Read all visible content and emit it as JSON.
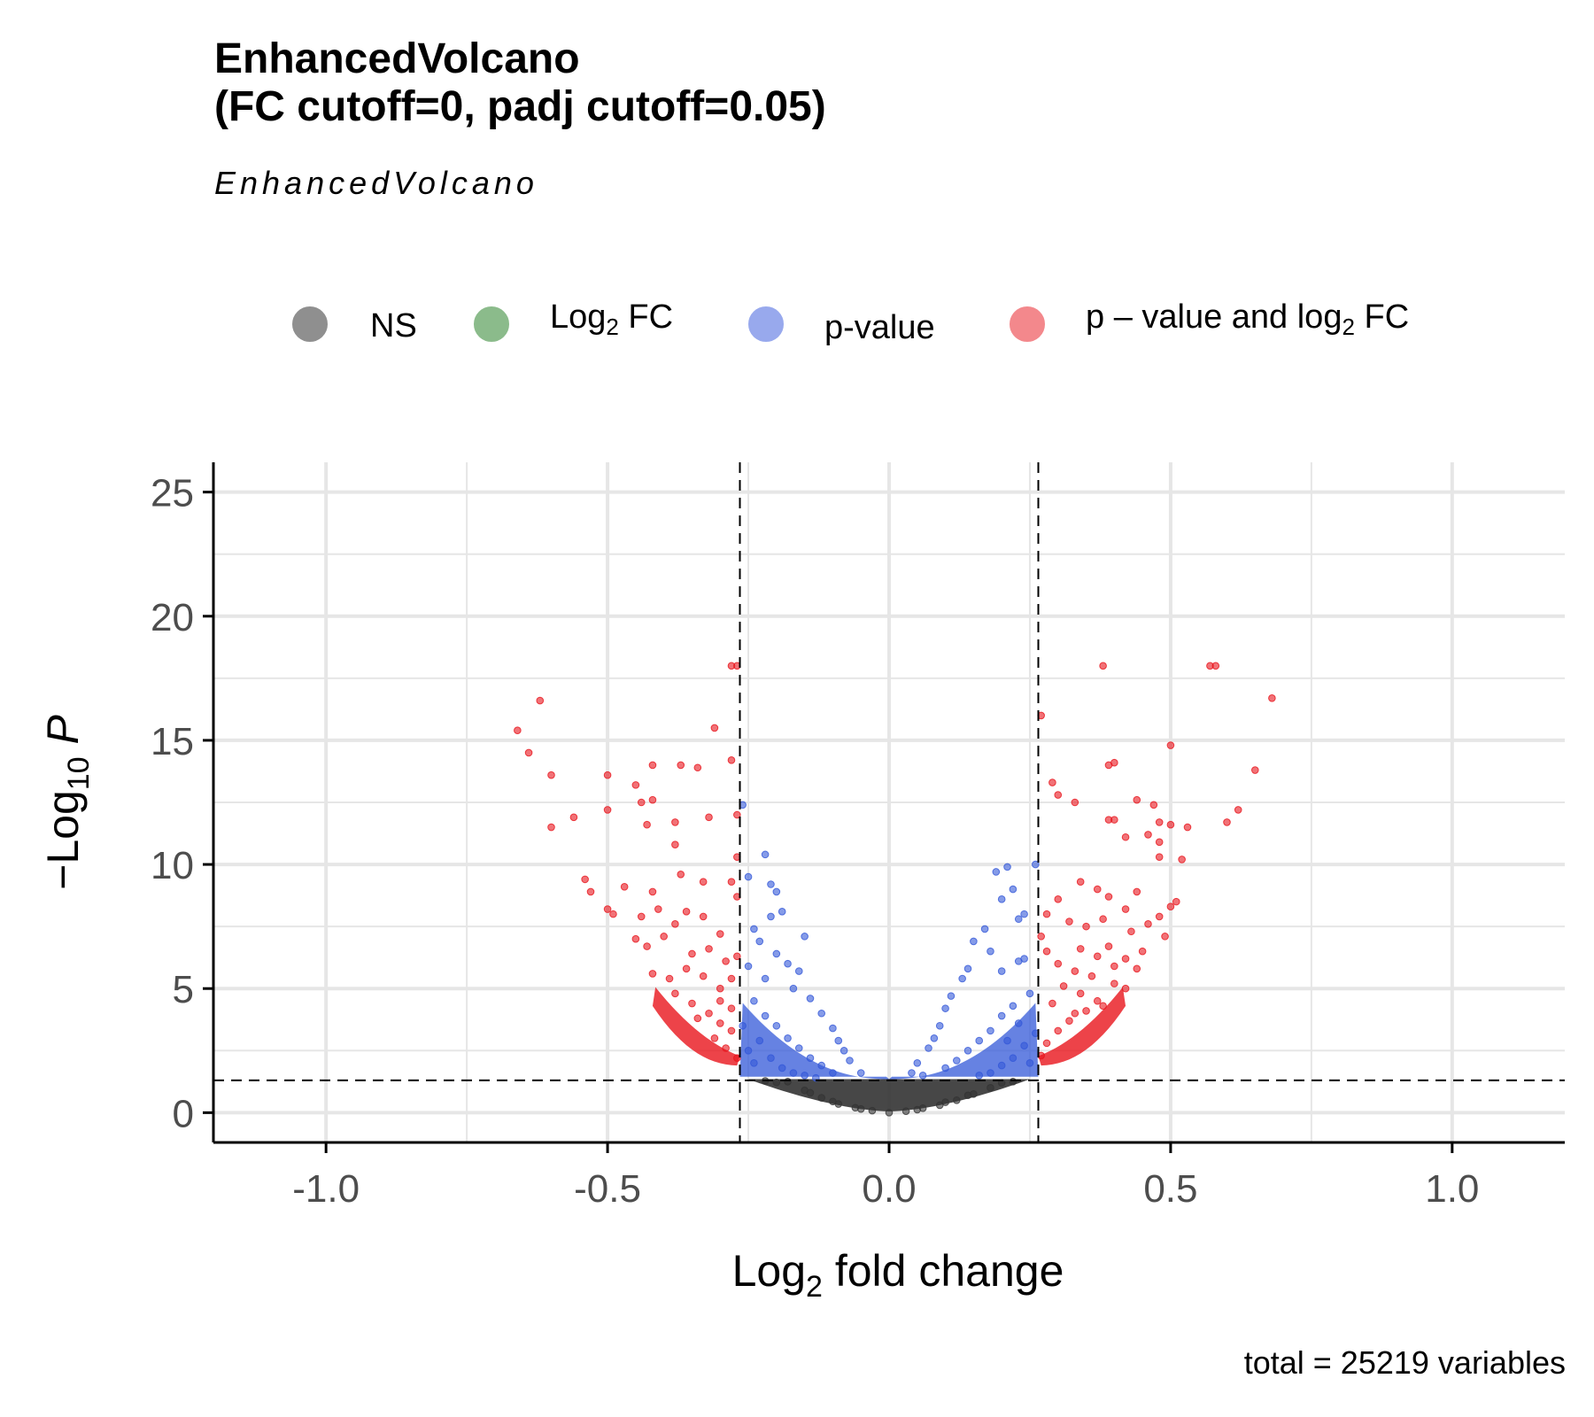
{
  "title_lines": [
    "EnhancedVolcano",
    "(FC cutoff=0, padj cutoff=0.05)"
  ],
  "subtitle": "EnhancedVolcano",
  "caption": "total = 25219 variables",
  "legend": [
    {
      "label": "NS",
      "sub": "",
      "suffix": "",
      "color": "#222222"
    },
    {
      "label": "Log",
      "sub": "2",
      "suffix": " FC",
      "color": "#1a7a1a"
    },
    {
      "label": "p-value",
      "sub": "",
      "suffix": "",
      "color": "#3355dd"
    },
    {
      "label": "p – value and log",
      "sub": "2",
      "suffix": " FC",
      "color": "#e8141c"
    }
  ],
  "colors": {
    "ns": "#333333",
    "log2fc": "#2e8b2e",
    "pvalue": "#3358d8",
    "both": "#e8141c",
    "grid": "#e6e6e6",
    "axis": "#000000"
  },
  "chart_data": {
    "type": "scatter",
    "title": "EnhancedVolcano (FC cutoff=0, padj cutoff=0.05)",
    "subtitle": "EnhancedVolcano",
    "xlabel": {
      "main": "Log",
      "sub": "2",
      "rest": " fold change"
    },
    "ylabel": {
      "main": "−Log",
      "sub": "10",
      "italic": "P"
    },
    "xlim": [
      -1.2,
      1.2
    ],
    "ylim": [
      -1.2,
      26.2
    ],
    "xticks": [
      -1.0,
      -0.5,
      0.0,
      0.5,
      1.0
    ],
    "xtick_labels": [
      "-1.0",
      "-0.5",
      "0.0",
      "0.5",
      "1.0"
    ],
    "yticks": [
      0,
      5,
      10,
      15,
      20,
      25
    ],
    "ytick_labels": [
      "0",
      "5",
      "10",
      "15",
      "20",
      "25"
    ],
    "cutoffs": {
      "log2fc": [
        -0.265,
        0.265
      ],
      "neg_log10_p": 1.3
    },
    "grid": true,
    "legend_position": "top",
    "total_points": 25219,
    "series": [
      {
        "name": "NS",
        "color": "#333333",
        "points": [
          [
            -0.18,
            1.25
          ],
          [
            -0.15,
            0.9
          ],
          [
            -0.12,
            0.6
          ],
          [
            -0.09,
            0.35
          ],
          [
            -0.06,
            0.2
          ],
          [
            -0.03,
            0.08
          ],
          [
            0.0,
            0.0
          ],
          [
            0.03,
            0.06
          ],
          [
            0.06,
            0.18
          ],
          [
            0.09,
            0.3
          ],
          [
            0.12,
            0.5
          ],
          [
            0.15,
            0.75
          ],
          [
            0.18,
            1.0
          ],
          [
            0.2,
            1.2
          ],
          [
            -0.2,
            1.22
          ],
          [
            -0.1,
            0.45
          ],
          [
            0.1,
            0.42
          ],
          [
            -0.05,
            0.15
          ],
          [
            0.05,
            0.12
          ],
          [
            -0.14,
            0.8
          ],
          [
            0.14,
            0.7
          ],
          [
            -0.22,
            1.28
          ],
          [
            0.22,
            1.25
          ]
        ]
      },
      {
        "name": "p-value",
        "color": "#3358d8",
        "points": [
          [
            -0.26,
            12.4
          ],
          [
            -0.22,
            10.4
          ],
          [
            -0.25,
            9.5
          ],
          [
            -0.21,
            9.2
          ],
          [
            -0.2,
            8.9
          ],
          [
            -0.19,
            8.1
          ],
          [
            -0.21,
            7.9
          ],
          [
            -0.15,
            7.1
          ],
          [
            -0.24,
            7.4
          ],
          [
            -0.23,
            6.9
          ],
          [
            -0.2,
            6.4
          ],
          [
            -0.18,
            6.0
          ],
          [
            -0.16,
            5.7
          ],
          [
            -0.22,
            5.4
          ],
          [
            -0.25,
            5.9
          ],
          [
            -0.17,
            5.0
          ],
          [
            -0.14,
            4.6
          ],
          [
            -0.12,
            4.0
          ],
          [
            -0.1,
            3.4
          ],
          [
            -0.09,
            2.9
          ],
          [
            -0.08,
            2.5
          ],
          [
            -0.07,
            2.1
          ],
          [
            -0.05,
            1.6
          ],
          [
            -0.24,
            4.5
          ],
          [
            -0.22,
            3.9
          ],
          [
            -0.2,
            3.5
          ],
          [
            -0.18,
            3.0
          ],
          [
            -0.16,
            2.6
          ],
          [
            -0.14,
            2.2
          ],
          [
            -0.12,
            1.9
          ],
          [
            -0.1,
            1.6
          ],
          [
            -0.25,
            2.5
          ],
          [
            -0.23,
            2.9
          ],
          [
            -0.21,
            2.2
          ],
          [
            -0.19,
            1.8
          ],
          [
            -0.17,
            1.6
          ],
          [
            -0.15,
            1.5
          ],
          [
            -0.13,
            1.4
          ],
          [
            -0.26,
            3.5
          ],
          [
            -0.24,
            2.0
          ],
          [
            0.19,
            9.7
          ],
          [
            0.21,
            9.9
          ],
          [
            0.26,
            10.0
          ],
          [
            0.22,
            9.0
          ],
          [
            0.2,
            8.6
          ],
          [
            0.23,
            7.8
          ],
          [
            0.24,
            8.0
          ],
          [
            0.17,
            7.4
          ],
          [
            0.15,
            6.9
          ],
          [
            0.18,
            6.5
          ],
          [
            0.23,
            6.1
          ],
          [
            0.14,
            5.8
          ],
          [
            0.13,
            5.4
          ],
          [
            0.2,
            5.7
          ],
          [
            0.24,
            6.2
          ],
          [
            0.11,
            4.7
          ],
          [
            0.1,
            4.2
          ],
          [
            0.09,
            3.5
          ],
          [
            0.08,
            3.0
          ],
          [
            0.07,
            2.6
          ],
          [
            0.05,
            2.0
          ],
          [
            0.04,
            1.6
          ],
          [
            0.25,
            4.8
          ],
          [
            0.22,
            4.3
          ],
          [
            0.2,
            3.9
          ],
          [
            0.18,
            3.3
          ],
          [
            0.16,
            2.9
          ],
          [
            0.14,
            2.5
          ],
          [
            0.12,
            2.1
          ],
          [
            0.1,
            1.8
          ],
          [
            0.06,
            1.5
          ],
          [
            0.26,
            3.2
          ],
          [
            0.24,
            2.7
          ],
          [
            0.22,
            2.2
          ],
          [
            0.2,
            1.9
          ],
          [
            0.18,
            1.6
          ],
          [
            0.16,
            1.5
          ],
          [
            0.25,
            2.0
          ],
          [
            0.23,
            3.6
          ],
          [
            0.21,
            2.9
          ]
        ]
      },
      {
        "name": "p – value and log2 FC",
        "color": "#e8141c",
        "points": [
          [
            -0.28,
            18.0
          ],
          [
            -0.27,
            18.0
          ],
          [
            -0.31,
            15.5
          ],
          [
            -0.62,
            16.6
          ],
          [
            -0.66,
            15.4
          ],
          [
            -0.64,
            14.5
          ],
          [
            -0.6,
            13.6
          ],
          [
            -0.42,
            14.0
          ],
          [
            -0.37,
            14.0
          ],
          [
            -0.34,
            13.9
          ],
          [
            -0.28,
            14.2
          ],
          [
            -0.5,
            13.6
          ],
          [
            -0.45,
            13.2
          ],
          [
            -0.42,
            12.6
          ],
          [
            -0.44,
            12.5
          ],
          [
            -0.56,
            11.9
          ],
          [
            -0.5,
            12.2
          ],
          [
            -0.6,
            11.5
          ],
          [
            -0.43,
            11.6
          ],
          [
            -0.38,
            11.7
          ],
          [
            -0.32,
            11.9
          ],
          [
            -0.27,
            12.0
          ],
          [
            -0.38,
            10.8
          ],
          [
            -0.27,
            10.3
          ],
          [
            -0.54,
            9.4
          ],
          [
            -0.53,
            8.9
          ],
          [
            -0.47,
            9.1
          ],
          [
            -0.42,
            8.9
          ],
          [
            -0.33,
            9.3
          ],
          [
            -0.37,
            9.6
          ],
          [
            -0.28,
            9.3
          ],
          [
            -0.27,
            8.7
          ],
          [
            -0.5,
            8.2
          ],
          [
            -0.49,
            8.0
          ],
          [
            -0.44,
            7.9
          ],
          [
            -0.41,
            8.2
          ],
          [
            -0.36,
            8.1
          ],
          [
            -0.33,
            7.9
          ],
          [
            -0.38,
            7.6
          ],
          [
            -0.3,
            7.2
          ],
          [
            -0.45,
            7.0
          ],
          [
            -0.43,
            6.7
          ],
          [
            -0.4,
            7.1
          ],
          [
            -0.35,
            6.4
          ],
          [
            -0.32,
            6.6
          ],
          [
            -0.29,
            6.1
          ],
          [
            -0.42,
            5.6
          ],
          [
            -0.39,
            5.4
          ],
          [
            -0.36,
            5.8
          ],
          [
            -0.33,
            5.5
          ],
          [
            -0.3,
            5.0
          ],
          [
            -0.28,
            5.4
          ],
          [
            -0.38,
            4.8
          ],
          [
            -0.35,
            4.4
          ],
          [
            -0.32,
            4.0
          ],
          [
            -0.3,
            3.6
          ],
          [
            -0.28,
            3.3
          ],
          [
            -0.34,
            3.8
          ],
          [
            -0.31,
            3.0
          ],
          [
            -0.29,
            2.6
          ],
          [
            -0.27,
            2.2
          ],
          [
            -0.3,
            4.5
          ],
          [
            -0.28,
            4.2
          ],
          [
            -0.27,
            6.3
          ],
          [
            0.27,
            16.0
          ],
          [
            0.38,
            18.0
          ],
          [
            0.57,
            18.0
          ],
          [
            0.58,
            18.0
          ],
          [
            0.68,
            16.7
          ],
          [
            0.5,
            14.8
          ],
          [
            0.4,
            14.1
          ],
          [
            0.39,
            14.0
          ],
          [
            0.65,
            13.8
          ],
          [
            0.29,
            13.3
          ],
          [
            0.3,
            12.8
          ],
          [
            0.33,
            12.5
          ],
          [
            0.44,
            12.6
          ],
          [
            0.47,
            12.4
          ],
          [
            0.62,
            12.2
          ],
          [
            0.39,
            11.8
          ],
          [
            0.4,
            11.8
          ],
          [
            0.48,
            11.7
          ],
          [
            0.5,
            11.6
          ],
          [
            0.53,
            11.5
          ],
          [
            0.6,
            11.7
          ],
          [
            0.46,
            11.2
          ],
          [
            0.42,
            11.1
          ],
          [
            0.48,
            10.9
          ],
          [
            0.52,
            10.2
          ],
          [
            0.48,
            10.3
          ],
          [
            0.34,
            9.3
          ],
          [
            0.37,
            9.0
          ],
          [
            0.39,
            8.7
          ],
          [
            0.44,
            8.9
          ],
          [
            0.5,
            8.3
          ],
          [
            0.51,
            8.5
          ],
          [
            0.42,
            8.2
          ],
          [
            0.3,
            8.6
          ],
          [
            0.28,
            8.0
          ],
          [
            0.32,
            7.7
          ],
          [
            0.35,
            7.5
          ],
          [
            0.38,
            7.8
          ],
          [
            0.43,
            7.3
          ],
          [
            0.46,
            7.6
          ],
          [
            0.48,
            7.9
          ],
          [
            0.49,
            7.1
          ],
          [
            0.34,
            6.6
          ],
          [
            0.37,
            6.3
          ],
          [
            0.39,
            6.7
          ],
          [
            0.42,
            6.2
          ],
          [
            0.45,
            6.5
          ],
          [
            0.3,
            6.0
          ],
          [
            0.33,
            5.7
          ],
          [
            0.36,
            5.5
          ],
          [
            0.4,
            5.9
          ],
          [
            0.44,
            5.8
          ],
          [
            0.31,
            5.1
          ],
          [
            0.34,
            4.8
          ],
          [
            0.37,
            4.5
          ],
          [
            0.4,
            5.2
          ],
          [
            0.35,
            4.1
          ],
          [
            0.32,
            3.7
          ],
          [
            0.3,
            3.3
          ],
          [
            0.28,
            2.8
          ],
          [
            0.27,
            2.3
          ],
          [
            0.29,
            4.4
          ],
          [
            0.33,
            4.0
          ],
          [
            0.38,
            4.3
          ],
          [
            0.42,
            5.0
          ],
          [
            0.28,
            6.5
          ],
          [
            0.27,
            7.1
          ]
        ]
      }
    ]
  }
}
